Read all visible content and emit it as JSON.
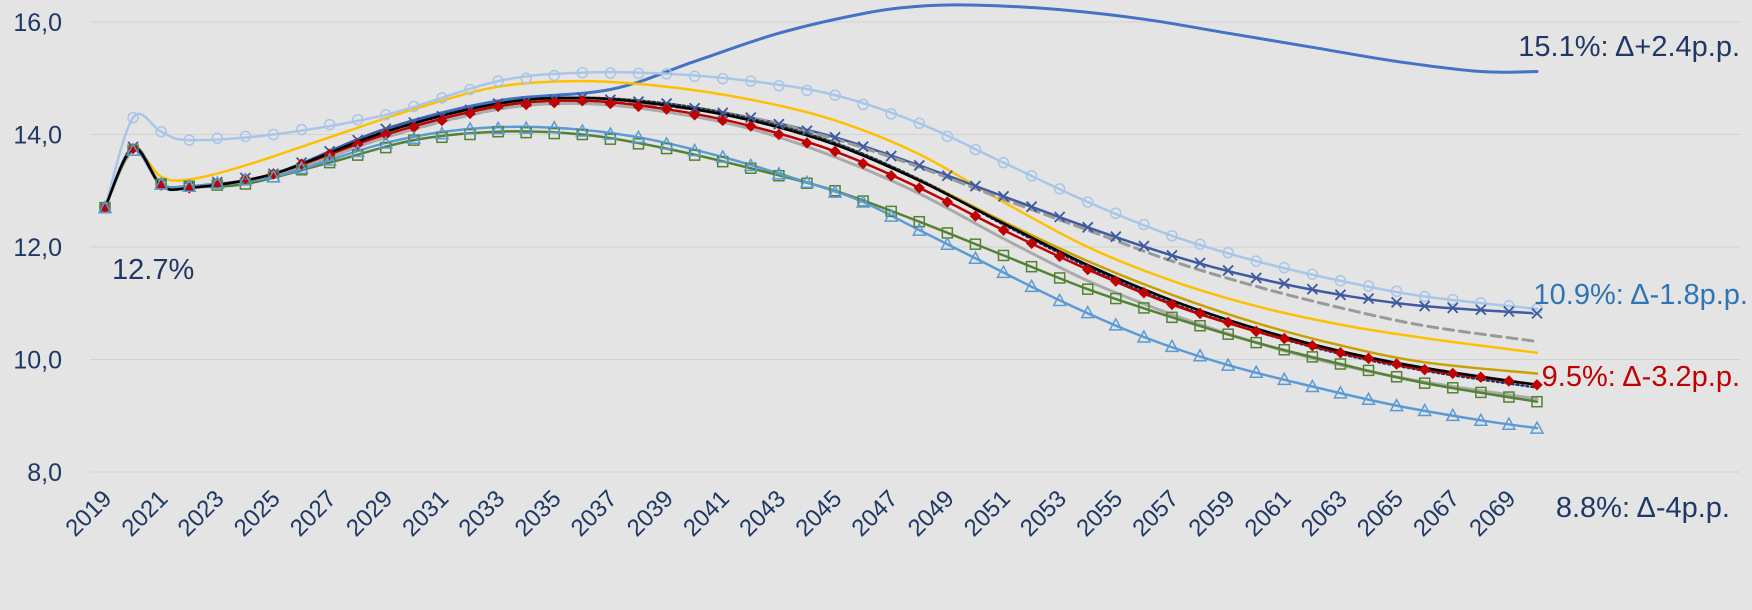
{
  "chart_data": {
    "type": "line",
    "title": "",
    "xlabel": "",
    "ylabel": "",
    "ylim": [
      8,
      16
    ],
    "xlim": [
      2019,
      2070
    ],
    "grid": "horizontal",
    "y_ticks": [
      "8,0",
      "10,0",
      "12,0",
      "14,0",
      "16,0"
    ],
    "x_ticks": [
      "2019",
      "2021",
      "2023",
      "2025",
      "2027",
      "2029",
      "2031",
      "2033",
      "2035",
      "2037",
      "2039",
      "2041",
      "2043",
      "2045",
      "2047",
      "2049",
      "2051",
      "2053",
      "2055",
      "2057",
      "2059",
      "2061",
      "2063",
      "2065",
      "2067",
      "2069"
    ],
    "annotations": [
      {
        "text": "12.7%",
        "color": "#1f3864"
      },
      {
        "text": "15.1%: Δ+2.4p.p.",
        "color": "#1f3864"
      },
      {
        "text": "10.9%: Δ-1.8p.p.",
        "color": "#2e75b6"
      },
      {
        "text": "9.5%: Δ-3.2p.p.",
        "color": "#c00000"
      },
      {
        "text": "8.8%: Δ-4p.p.",
        "color": "#1f3864"
      }
    ],
    "series": [
      {
        "color": "#4472c4",
        "width": 3,
        "marker": "none",
        "dash": "none",
        "points": [
          [
            2019,
            12.7
          ],
          [
            2020,
            13.75
          ],
          [
            2021,
            13.1
          ],
          [
            2022,
            13.05
          ],
          [
            2025,
            13.3
          ],
          [
            2029,
            14.1
          ],
          [
            2033,
            14.6
          ],
          [
            2037,
            14.8
          ],
          [
            2040,
            15.3
          ],
          [
            2043,
            15.8
          ],
          [
            2046,
            16.15
          ],
          [
            2048,
            16.28
          ],
          [
            2050,
            16.3
          ],
          [
            2053,
            16.22
          ],
          [
            2056,
            16.05
          ],
          [
            2059,
            15.8
          ],
          [
            2062,
            15.55
          ],
          [
            2065,
            15.3
          ],
          [
            2068,
            15.12
          ],
          [
            2070,
            15.12
          ]
        ]
      },
      {
        "color": "#a9c6e8",
        "width": 2.5,
        "marker": "circle",
        "dash": "none",
        "points": [
          [
            2019,
            12.7
          ],
          [
            2020,
            14.3
          ],
          [
            2021,
            14.05
          ],
          [
            2022,
            13.9
          ],
          [
            2025,
            14.0
          ],
          [
            2029,
            14.35
          ],
          [
            2033,
            14.95
          ],
          [
            2036,
            15.1
          ],
          [
            2039,
            15.08
          ],
          [
            2042,
            14.95
          ],
          [
            2045,
            14.7
          ],
          [
            2048,
            14.2
          ],
          [
            2051,
            13.5
          ],
          [
            2054,
            12.8
          ],
          [
            2057,
            12.2
          ],
          [
            2060,
            11.75
          ],
          [
            2063,
            11.4
          ],
          [
            2066,
            11.12
          ],
          [
            2070,
            10.9
          ]
        ]
      },
      {
        "color": "#ffc000",
        "width": 2.5,
        "marker": "none",
        "dash": "none",
        "points": [
          [
            2019,
            12.7
          ],
          [
            2020,
            13.7
          ],
          [
            2021,
            13.25
          ],
          [
            2022,
            13.2
          ],
          [
            2024,
            13.45
          ],
          [
            2027,
            13.95
          ],
          [
            2030,
            14.45
          ],
          [
            2033,
            14.85
          ],
          [
            2036,
            14.95
          ],
          [
            2039,
            14.85
          ],
          [
            2042,
            14.62
          ],
          [
            2045,
            14.25
          ],
          [
            2048,
            13.65
          ],
          [
            2051,
            12.8
          ],
          [
            2054,
            12.0
          ],
          [
            2057,
            11.4
          ],
          [
            2060,
            10.95
          ],
          [
            2063,
            10.62
          ],
          [
            2066,
            10.38
          ],
          [
            2070,
            10.12
          ]
        ]
      },
      {
        "color": "#3e5aa0",
        "width": 2.5,
        "marker": "x",
        "dash": "none",
        "points": [
          [
            2019,
            12.7
          ],
          [
            2020,
            13.78
          ],
          [
            2021,
            13.12
          ],
          [
            2022,
            13.08
          ],
          [
            2025,
            13.3
          ],
          [
            2029,
            14.1
          ],
          [
            2033,
            14.55
          ],
          [
            2036,
            14.65
          ],
          [
            2039,
            14.55
          ],
          [
            2042,
            14.3
          ],
          [
            2045,
            13.95
          ],
          [
            2048,
            13.45
          ],
          [
            2051,
            12.9
          ],
          [
            2054,
            12.35
          ],
          [
            2057,
            11.85
          ],
          [
            2060,
            11.45
          ],
          [
            2063,
            11.15
          ],
          [
            2066,
            10.95
          ],
          [
            2070,
            10.82
          ]
        ]
      },
      {
        "color": "#999999",
        "width": 3,
        "marker": "none",
        "dash": "10,6",
        "points": [
          [
            2019,
            12.7
          ],
          [
            2020,
            13.72
          ],
          [
            2021,
            13.1
          ],
          [
            2022,
            13.05
          ],
          [
            2025,
            13.25
          ],
          [
            2029,
            13.95
          ],
          [
            2033,
            14.45
          ],
          [
            2036,
            14.6
          ],
          [
            2039,
            14.5
          ],
          [
            2042,
            14.3
          ],
          [
            2045,
            13.92
          ],
          [
            2048,
            13.42
          ],
          [
            2051,
            12.85
          ],
          [
            2054,
            12.3
          ],
          [
            2057,
            11.75
          ],
          [
            2060,
            11.3
          ],
          [
            2063,
            10.92
          ],
          [
            2066,
            10.6
          ],
          [
            2070,
            10.32
          ]
        ]
      },
      {
        "color": "#c8a000",
        "width": 2.5,
        "marker": "none",
        "dash": "none",
        "points": [
          [
            2019,
            12.7
          ],
          [
            2020,
            13.72
          ],
          [
            2021,
            13.1
          ],
          [
            2022,
            13.05
          ],
          [
            2025,
            13.3
          ],
          [
            2029,
            14.0
          ],
          [
            2033,
            14.5
          ],
          [
            2036,
            14.65
          ],
          [
            2039,
            14.55
          ],
          [
            2042,
            14.28
          ],
          [
            2045,
            13.85
          ],
          [
            2048,
            13.2
          ],
          [
            2051,
            12.45
          ],
          [
            2054,
            11.75
          ],
          [
            2057,
            11.15
          ],
          [
            2060,
            10.65
          ],
          [
            2063,
            10.25
          ],
          [
            2066,
            9.95
          ],
          [
            2070,
            9.75
          ]
        ]
      },
      {
        "color": "#1f3864",
        "width": 2.5,
        "marker": "none",
        "dash": "2,3",
        "points": [
          [
            2019,
            12.7
          ],
          [
            2020,
            13.75
          ],
          [
            2021,
            13.1
          ],
          [
            2022,
            13.05
          ],
          [
            2025,
            13.3
          ],
          [
            2029,
            14.05
          ],
          [
            2033,
            14.55
          ],
          [
            2036,
            14.65
          ],
          [
            2039,
            14.55
          ],
          [
            2042,
            14.28
          ],
          [
            2045,
            13.85
          ],
          [
            2048,
            13.2
          ],
          [
            2051,
            12.4
          ],
          [
            2054,
            11.65
          ],
          [
            2057,
            11.0
          ],
          [
            2060,
            10.5
          ],
          [
            2063,
            10.1
          ],
          [
            2066,
            9.8
          ],
          [
            2070,
            9.5
          ]
        ]
      },
      {
        "color": "#c00000",
        "width": 2.5,
        "marker": "diamond",
        "dash": "none",
        "points": [
          [
            2019,
            12.7
          ],
          [
            2020,
            13.75
          ],
          [
            2021,
            13.1
          ],
          [
            2022,
            13.05
          ],
          [
            2025,
            13.3
          ],
          [
            2029,
            14.0
          ],
          [
            2033,
            14.5
          ],
          [
            2036,
            14.6
          ],
          [
            2039,
            14.45
          ],
          [
            2042,
            14.15
          ],
          [
            2045,
            13.7
          ],
          [
            2048,
            13.05
          ],
          [
            2051,
            12.3
          ],
          [
            2054,
            11.6
          ],
          [
            2057,
            10.98
          ],
          [
            2060,
            10.5
          ],
          [
            2063,
            10.12
          ],
          [
            2066,
            9.82
          ],
          [
            2070,
            9.55
          ]
        ]
      },
      {
        "color": "#aaaaaa",
        "width": 3,
        "marker": "none",
        "dash": "none",
        "points": [
          [
            2019,
            12.7
          ],
          [
            2020,
            13.72
          ],
          [
            2021,
            13.1
          ],
          [
            2022,
            13.05
          ],
          [
            2025,
            13.25
          ],
          [
            2029,
            13.95
          ],
          [
            2033,
            14.45
          ],
          [
            2036,
            14.55
          ],
          [
            2039,
            14.4
          ],
          [
            2042,
            14.1
          ],
          [
            2045,
            13.6
          ],
          [
            2048,
            12.95
          ],
          [
            2051,
            12.15
          ],
          [
            2054,
            11.4
          ],
          [
            2057,
            10.8
          ],
          [
            2060,
            10.3
          ],
          [
            2063,
            9.9
          ],
          [
            2066,
            9.6
          ],
          [
            2070,
            9.3
          ]
        ]
      },
      {
        "color": "#548235",
        "width": 2.5,
        "marker": "square",
        "dash": "none",
        "points": [
          [
            2019,
            12.7
          ],
          [
            2020,
            13.72
          ],
          [
            2021,
            13.12
          ],
          [
            2022,
            13.08
          ],
          [
            2024,
            13.12
          ],
          [
            2027,
            13.5
          ],
          [
            2030,
            13.9
          ],
          [
            2033,
            14.05
          ],
          [
            2036,
            14.0
          ],
          [
            2039,
            13.75
          ],
          [
            2042,
            13.4
          ],
          [
            2045,
            13.0
          ],
          [
            2048,
            12.45
          ],
          [
            2051,
            11.85
          ],
          [
            2054,
            11.25
          ],
          [
            2057,
            10.75
          ],
          [
            2060,
            10.3
          ],
          [
            2063,
            9.92
          ],
          [
            2066,
            9.58
          ],
          [
            2070,
            9.25
          ]
        ]
      },
      {
        "color": "#5b9bd5",
        "width": 2.5,
        "marker": "triangle",
        "dash": "none",
        "points": [
          [
            2019,
            12.7
          ],
          [
            2020,
            13.72
          ],
          [
            2021,
            13.12
          ],
          [
            2022,
            13.08
          ],
          [
            2025,
            13.25
          ],
          [
            2029,
            13.85
          ],
          [
            2032,
            14.1
          ],
          [
            2035,
            14.12
          ],
          [
            2038,
            13.95
          ],
          [
            2041,
            13.6
          ],
          [
            2044,
            13.15
          ],
          [
            2046,
            12.8
          ],
          [
            2048,
            12.3
          ],
          [
            2050,
            11.8
          ],
          [
            2053,
            11.05
          ],
          [
            2056,
            10.4
          ],
          [
            2059,
            9.9
          ],
          [
            2062,
            9.52
          ],
          [
            2065,
            9.18
          ],
          [
            2068,
            8.92
          ],
          [
            2070,
            8.78
          ]
        ]
      },
      {
        "color": "#000000",
        "width": 2.5,
        "marker": "none",
        "dash": "none",
        "points": [
          [
            2019,
            12.7
          ],
          [
            2020,
            13.75
          ],
          [
            2021,
            13.1
          ],
          [
            2022,
            13.05
          ],
          [
            2025,
            13.3
          ],
          [
            2029,
            14.05
          ],
          [
            2033,
            14.55
          ],
          [
            2036,
            14.65
          ],
          [
            2039,
            14.52
          ],
          [
            2042,
            14.25
          ],
          [
            2045,
            13.82
          ],
          [
            2048,
            13.18
          ],
          [
            2051,
            12.42
          ],
          [
            2054,
            11.68
          ],
          [
            2057,
            11.05
          ],
          [
            2060,
            10.55
          ],
          [
            2063,
            10.15
          ],
          [
            2066,
            9.85
          ],
          [
            2070,
            9.55
          ]
        ]
      }
    ]
  }
}
